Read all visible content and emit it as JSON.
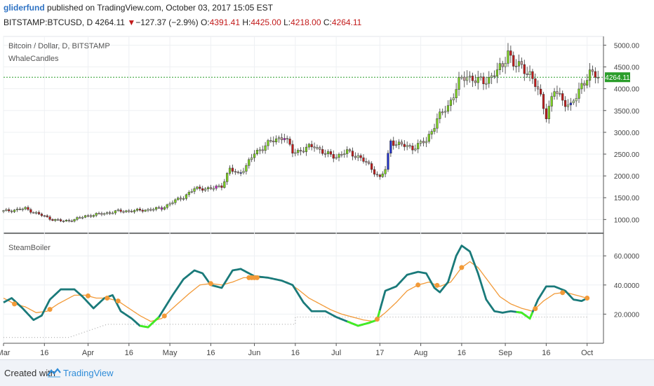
{
  "header": {
    "author": "gliderfund",
    "published_text": "published on TradingView.com, October 03, 2017 15:05 EST"
  },
  "quote": {
    "symbol": "BITSTAMP:BTCUSD, D",
    "last": "4264.11",
    "change_arrow": "▼",
    "change": "−127.37 (−2.9%)",
    "open_label": "O:",
    "open": "4391.41",
    "high_label": "H:",
    "high": "4425.00",
    "low_label": "L:",
    "low": "4218.00",
    "close_label": "C:",
    "close": "4264.11"
  },
  "footer": {
    "created_with": "Created with",
    "brand": "TradingView"
  },
  "colors": {
    "bull": "#7ed321",
    "bear": "#c21b1b",
    "neutral_up": "#bfe39a",
    "neutral_down": "#c9a0a0",
    "blue": "#2233cc",
    "magenta": "#cc22cc",
    "steam": "#1a7a7a",
    "steam_green": "#44ee22",
    "signal": "#f29a38",
    "price_line": "#2a9d2a"
  },
  "chart_data": [
    {
      "type": "candlestick",
      "title": "Bitcoin / Dollar, D, BITSTAMP",
      "subtitle": "WhaleCandles",
      "ylim": [
        700,
        5200
      ],
      "y_ticks": [
        1000,
        1500,
        2000,
        2500,
        3000,
        3500,
        4000,
        4500,
        5000
      ],
      "y_tick_labels": [
        "1000.00",
        "1500.00",
        "2000.00",
        "2500.00",
        "3000.00",
        "3500.00",
        "4000.00",
        "4500.00",
        "5000.00"
      ],
      "last_price": 4264.11,
      "last_price_label": "4264.11",
      "x_labels": [
        "Mar",
        "16",
        "Apr",
        "16",
        "May",
        "16",
        "Jun",
        "16",
        "Jul",
        "17",
        "Aug",
        "16",
        "Sep",
        "16",
        "Oct"
      ],
      "x_label_days": [
        0,
        15,
        31,
        46,
        61,
        76,
        92,
        107,
        122,
        138,
        153,
        168,
        184,
        199,
        214
      ],
      "x_range_days": [
        0,
        220
      ],
      "anchors": [
        [
          0,
          1190
        ],
        [
          8,
          1250
        ],
        [
          13,
          1120
        ],
        [
          18,
          1000
        ],
        [
          22,
          960
        ],
        [
          26,
          1000
        ],
        [
          30,
          1080
        ],
        [
          36,
          1130
        ],
        [
          42,
          1190
        ],
        [
          48,
          1200
        ],
        [
          54,
          1230
        ],
        [
          58,
          1260
        ],
        [
          62,
          1400
        ],
        [
          66,
          1520
        ],
        [
          70,
          1700
        ],
        [
          73,
          1720
        ],
        [
          76,
          1700
        ],
        [
          80,
          1780
        ],
        [
          83,
          2150
        ],
        [
          86,
          2050
        ],
        [
          89,
          2220
        ],
        [
          92,
          2520
        ],
        [
          96,
          2700
        ],
        [
          100,
          2850
        ],
        [
          103,
          2900
        ],
        [
          106,
          2550
        ],
        [
          110,
          2600
        ],
        [
          114,
          2700
        ],
        [
          118,
          2500
        ],
        [
          122,
          2450
        ],
        [
          126,
          2550
        ],
        [
          130,
          2450
        ],
        [
          133,
          2300
        ],
        [
          136,
          2100
        ],
        [
          138,
          1950
        ],
        [
          140,
          2150
        ],
        [
          142,
          2800
        ],
        [
          146,
          2700
        ],
        [
          150,
          2650
        ],
        [
          155,
          2800
        ],
        [
          159,
          3300
        ],
        [
          163,
          3600
        ],
        [
          167,
          4150
        ],
        [
          170,
          4300
        ],
        [
          173,
          4200
        ],
        [
          176,
          4150
        ],
        [
          179,
          4300
        ],
        [
          183,
          4500
        ],
        [
          185,
          4900
        ],
        [
          187,
          4550
        ],
        [
          190,
          4500
        ],
        [
          193,
          4350
        ],
        [
          197,
          3800
        ],
        [
          199,
          3400
        ],
        [
          202,
          3950
        ],
        [
          205,
          3750
        ],
        [
          208,
          3600
        ],
        [
          210,
          3800
        ],
        [
          212,
          4100
        ],
        [
          215,
          4350
        ],
        [
          218,
          4260
        ]
      ]
    },
    {
      "type": "line",
      "title": "SteamBoiler",
      "ylim": [
        0,
        75
      ],
      "y_ticks": [
        20,
        40,
        60
      ],
      "y_tick_labels": [
        "20.0000",
        "40.0000",
        "60.0000"
      ],
      "steam_anchors": [
        [
          0,
          28
        ],
        [
          3,
          31
        ],
        [
          7,
          24
        ],
        [
          11,
          16
        ],
        [
          14,
          19
        ],
        [
          17,
          30
        ],
        [
          21,
          37
        ],
        [
          26,
          37
        ],
        [
          29,
          32
        ],
        [
          33,
          24
        ],
        [
          37,
          31
        ],
        [
          40,
          33
        ],
        [
          43,
          22
        ],
        [
          47,
          17
        ],
        [
          50,
          12
        ],
        [
          53,
          11
        ],
        [
          57,
          18
        ],
        [
          62,
          33
        ],
        [
          66,
          44
        ],
        [
          70,
          50
        ],
        [
          73,
          48
        ],
        [
          76,
          40
        ],
        [
          80,
          38
        ],
        [
          82,
          44
        ],
        [
          84,
          50
        ],
        [
          87,
          51
        ],
        [
          92,
          46
        ],
        [
          97,
          45
        ],
        [
          102,
          43
        ],
        [
          106,
          40
        ],
        [
          110,
          28
        ],
        [
          113,
          22
        ],
        [
          118,
          22
        ],
        [
          122,
          18
        ],
        [
          126,
          15
        ],
        [
          130,
          12
        ],
        [
          134,
          14
        ],
        [
          137,
          16
        ],
        [
          140,
          36
        ],
        [
          144,
          39
        ],
        [
          148,
          47
        ],
        [
          152,
          49
        ],
        [
          155,
          48
        ],
        [
          158,
          38
        ],
        [
          160,
          35
        ],
        [
          163,
          42
        ],
        [
          166,
          60
        ],
        [
          168,
          67
        ],
        [
          171,
          63
        ],
        [
          174,
          48
        ],
        [
          177,
          30
        ],
        [
          180,
          22
        ],
        [
          183,
          21
        ],
        [
          186,
          22
        ],
        [
          190,
          21
        ],
        [
          193,
          17
        ],
        [
          196,
          30
        ],
        [
          199,
          39
        ],
        [
          202,
          39
        ],
        [
          206,
          36
        ],
        [
          209,
          30
        ],
        [
          212,
          29
        ],
        [
          214,
          31
        ]
      ],
      "signal_anchors": [
        [
          0,
          31
        ],
        [
          4,
          27
        ],
        [
          8,
          25
        ],
        [
          12,
          21
        ],
        [
          16,
          22
        ],
        [
          20,
          27
        ],
        [
          26,
          33
        ],
        [
          30,
          33
        ],
        [
          34,
          31
        ],
        [
          38,
          31
        ],
        [
          42,
          29
        ],
        [
          46,
          24
        ],
        [
          50,
          19
        ],
        [
          54,
          15
        ],
        [
          58,
          17
        ],
        [
          62,
          24
        ],
        [
          68,
          34
        ],
        [
          72,
          40
        ],
        [
          76,
          41
        ],
        [
          80,
          40
        ],
        [
          84,
          42
        ],
        [
          88,
          45
        ],
        [
          92,
          45
        ],
        [
          96,
          45
        ],
        [
          100,
          44
        ],
        [
          104,
          42
        ],
        [
          108,
          37
        ],
        [
          112,
          31
        ],
        [
          116,
          27
        ],
        [
          120,
          23
        ],
        [
          124,
          20
        ],
        [
          128,
          18
        ],
        [
          132,
          16
        ],
        [
          136,
          15
        ],
        [
          140,
          21
        ],
        [
          144,
          28
        ],
        [
          148,
          36
        ],
        [
          152,
          40
        ],
        [
          156,
          42
        ],
        [
          160,
          39
        ],
        [
          164,
          42
        ],
        [
          168,
          52
        ],
        [
          171,
          56
        ],
        [
          174,
          52
        ],
        [
          178,
          42
        ],
        [
          182,
          32
        ],
        [
          186,
          27
        ],
        [
          190,
          24
        ],
        [
          194,
          22
        ],
        [
          198,
          29
        ],
        [
          202,
          34
        ],
        [
          206,
          35
        ],
        [
          210,
          33
        ],
        [
          214,
          31
        ]
      ],
      "baseline_steps": [
        [
          0,
          4
        ],
        [
          24,
          4
        ],
        [
          38,
          13
        ],
        [
          107,
          13
        ],
        [
          107,
          18
        ],
        [
          214,
          18
        ]
      ],
      "cross_markers": [
        4,
        17,
        31,
        38,
        42,
        59,
        76,
        90,
        91,
        92,
        93,
        137,
        152,
        159,
        168,
        195,
        205,
        214
      ],
      "green_segments": [
        [
          50,
          57
        ],
        [
          126,
          138
        ],
        [
          188,
          194
        ]
      ]
    }
  ]
}
